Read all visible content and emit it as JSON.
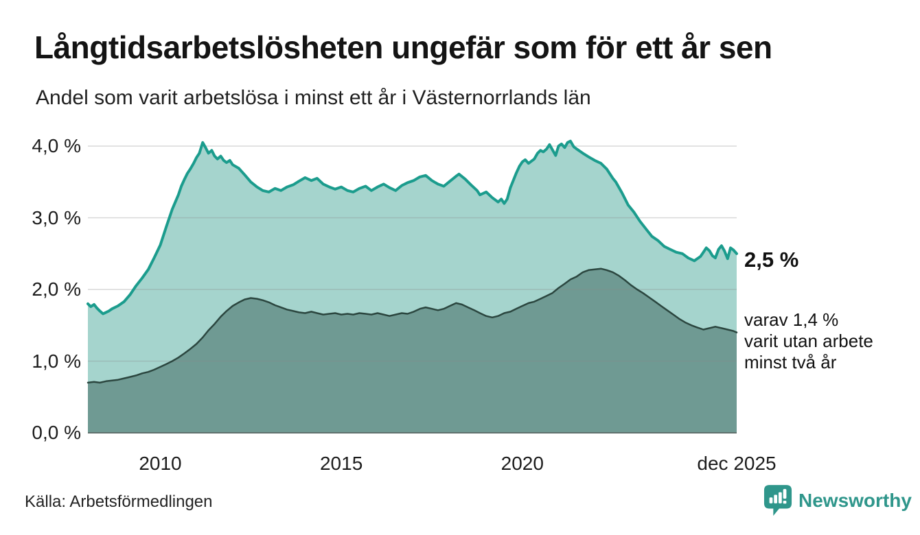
{
  "header": {
    "title": "Långtidsarbetslösheten ungefär som för ett år sen",
    "subtitle": "Andel som varit arbetslösa i minst ett år i Västernorrlands län"
  },
  "annotations": {
    "latest_total": "2,5 %",
    "secondary_lines": [
      "varav 1,4 %",
      "varit utan arbete",
      "minst två år"
    ]
  },
  "footer": {
    "source": "Källa: Arbetsförmedlingen",
    "logo_text": "Newsworthy"
  },
  "colors": {
    "line_total": "#1b9c8d",
    "fill_total": "#a5d4cd",
    "line_two_years": "#2b463f",
    "fill_two_years": "#6f9a93",
    "gridline": "#888888",
    "baseline": "#5f716d",
    "logo_teal": "#2f968b",
    "text_dark": "#141414"
  },
  "chart_data": {
    "type": "area",
    "title": "Långtidsarbetslösheten ungefär som för ett år sen",
    "subtitle": "Andel som varit arbetslösa i minst ett år i Västernorrlands län",
    "grid": true,
    "legend_position": "none",
    "x_axis": {
      "range": [
        2008.0,
        2025.92
      ],
      "ticks": [
        {
          "x": 2010,
          "label": "2010"
        },
        {
          "x": 2015,
          "label": "2015"
        },
        {
          "x": 2020,
          "label": "2020"
        },
        {
          "x": 2025.92,
          "label": "dec 2025"
        }
      ]
    },
    "y_axis": {
      "unit": "%",
      "range": [
        0,
        4.0
      ],
      "ticks": [
        {
          "v": 0,
          "label": "0,0 %"
        },
        {
          "v": 1,
          "label": "1,0 %"
        },
        {
          "v": 2,
          "label": "2,0 %"
        },
        {
          "v": 3,
          "label": "3,0 %"
        },
        {
          "v": 4,
          "label": "4,0 %"
        }
      ]
    },
    "series": [
      {
        "name": "Andel arbetslösa minst ett år",
        "latest_value": 2.5,
        "color": "#1b9c8d",
        "fill": "#a5d4cd",
        "stroke_width": 4,
        "points": [
          [
            2008.0,
            1.8
          ],
          [
            2008.08,
            1.76
          ],
          [
            2008.17,
            1.79
          ],
          [
            2008.25,
            1.74
          ],
          [
            2008.33,
            1.7
          ],
          [
            2008.42,
            1.66
          ],
          [
            2008.5,
            1.68
          ],
          [
            2008.58,
            1.7
          ],
          [
            2008.67,
            1.73
          ],
          [
            2008.83,
            1.77
          ],
          [
            2009.0,
            1.83
          ],
          [
            2009.17,
            1.93
          ],
          [
            2009.33,
            2.05
          ],
          [
            2009.5,
            2.16
          ],
          [
            2009.67,
            2.28
          ],
          [
            2009.83,
            2.44
          ],
          [
            2010.0,
            2.62
          ],
          [
            2010.17,
            2.88
          ],
          [
            2010.33,
            3.12
          ],
          [
            2010.5,
            3.32
          ],
          [
            2010.58,
            3.44
          ],
          [
            2010.67,
            3.54
          ],
          [
            2010.75,
            3.62
          ],
          [
            2010.83,
            3.68
          ],
          [
            2010.92,
            3.76
          ],
          [
            2011.0,
            3.84
          ],
          [
            2011.08,
            3.9
          ],
          [
            2011.17,
            4.05
          ],
          [
            2011.25,
            3.98
          ],
          [
            2011.33,
            3.9
          ],
          [
            2011.42,
            3.94
          ],
          [
            2011.5,
            3.86
          ],
          [
            2011.58,
            3.82
          ],
          [
            2011.67,
            3.86
          ],
          [
            2011.75,
            3.8
          ],
          [
            2011.83,
            3.77
          ],
          [
            2011.92,
            3.8
          ],
          [
            2012.0,
            3.74
          ],
          [
            2012.17,
            3.69
          ],
          [
            2012.33,
            3.6
          ],
          [
            2012.5,
            3.5
          ],
          [
            2012.67,
            3.43
          ],
          [
            2012.83,
            3.38
          ],
          [
            2013.0,
            3.36
          ],
          [
            2013.17,
            3.41
          ],
          [
            2013.33,
            3.38
          ],
          [
            2013.5,
            3.43
          ],
          [
            2013.67,
            3.46
          ],
          [
            2013.83,
            3.51
          ],
          [
            2014.0,
            3.56
          ],
          [
            2014.17,
            3.52
          ],
          [
            2014.33,
            3.55
          ],
          [
            2014.5,
            3.47
          ],
          [
            2014.67,
            3.43
          ],
          [
            2014.83,
            3.4
          ],
          [
            2015.0,
            3.43
          ],
          [
            2015.17,
            3.38
          ],
          [
            2015.33,
            3.36
          ],
          [
            2015.5,
            3.41
          ],
          [
            2015.67,
            3.44
          ],
          [
            2015.83,
            3.38
          ],
          [
            2016.0,
            3.43
          ],
          [
            2016.17,
            3.47
          ],
          [
            2016.33,
            3.42
          ],
          [
            2016.5,
            3.38
          ],
          [
            2016.67,
            3.45
          ],
          [
            2016.83,
            3.49
          ],
          [
            2017.0,
            3.52
          ],
          [
            2017.17,
            3.57
          ],
          [
            2017.33,
            3.59
          ],
          [
            2017.5,
            3.52
          ],
          [
            2017.67,
            3.47
          ],
          [
            2017.83,
            3.44
          ],
          [
            2018.0,
            3.51
          ],
          [
            2018.17,
            3.58
          ],
          [
            2018.25,
            3.61
          ],
          [
            2018.42,
            3.54
          ],
          [
            2018.58,
            3.46
          ],
          [
            2018.75,
            3.38
          ],
          [
            2018.83,
            3.32
          ],
          [
            2019.0,
            3.36
          ],
          [
            2019.17,
            3.28
          ],
          [
            2019.33,
            3.22
          ],
          [
            2019.42,
            3.26
          ],
          [
            2019.5,
            3.2
          ],
          [
            2019.58,
            3.26
          ],
          [
            2019.67,
            3.42
          ],
          [
            2019.83,
            3.62
          ],
          [
            2019.92,
            3.72
          ],
          [
            2020.0,
            3.78
          ],
          [
            2020.08,
            3.81
          ],
          [
            2020.17,
            3.76
          ],
          [
            2020.33,
            3.82
          ],
          [
            2020.42,
            3.9
          ],
          [
            2020.5,
            3.94
          ],
          [
            2020.58,
            3.92
          ],
          [
            2020.67,
            3.96
          ],
          [
            2020.75,
            4.02
          ],
          [
            2020.92,
            3.87
          ],
          [
            2021.0,
            4.0
          ],
          [
            2021.08,
            4.03
          ],
          [
            2021.17,
            3.98
          ],
          [
            2021.25,
            4.05
          ],
          [
            2021.33,
            4.07
          ],
          [
            2021.42,
            3.99
          ],
          [
            2021.5,
            3.96
          ],
          [
            2021.67,
            3.9
          ],
          [
            2021.83,
            3.85
          ],
          [
            2022.0,
            3.8
          ],
          [
            2022.17,
            3.76
          ],
          [
            2022.33,
            3.68
          ],
          [
            2022.5,
            3.55
          ],
          [
            2022.58,
            3.5
          ],
          [
            2022.75,
            3.35
          ],
          [
            2022.92,
            3.18
          ],
          [
            2023.08,
            3.08
          ],
          [
            2023.25,
            2.95
          ],
          [
            2023.42,
            2.84
          ],
          [
            2023.58,
            2.74
          ],
          [
            2023.75,
            2.68
          ],
          [
            2023.92,
            2.6
          ],
          [
            2024.08,
            2.56
          ],
          [
            2024.25,
            2.52
          ],
          [
            2024.42,
            2.5
          ],
          [
            2024.58,
            2.44
          ],
          [
            2024.75,
            2.4
          ],
          [
            2024.92,
            2.46
          ],
          [
            2025.0,
            2.52
          ],
          [
            2025.08,
            2.58
          ],
          [
            2025.17,
            2.54
          ],
          [
            2025.25,
            2.47
          ],
          [
            2025.33,
            2.44
          ],
          [
            2025.42,
            2.56
          ],
          [
            2025.5,
            2.61
          ],
          [
            2025.58,
            2.54
          ],
          [
            2025.67,
            2.43
          ],
          [
            2025.75,
            2.58
          ],
          [
            2025.83,
            2.55
          ],
          [
            2025.92,
            2.5
          ]
        ]
      },
      {
        "name": "Andel arbetslösa minst två år",
        "latest_value": 1.4,
        "color": "#2b463f",
        "fill": "#6f9a93",
        "stroke_width": 2.5,
        "points": [
          [
            2008.0,
            0.7
          ],
          [
            2008.17,
            0.71
          ],
          [
            2008.33,
            0.7
          ],
          [
            2008.5,
            0.72
          ],
          [
            2008.67,
            0.73
          ],
          [
            2008.83,
            0.74
          ],
          [
            2009.0,
            0.76
          ],
          [
            2009.17,
            0.78
          ],
          [
            2009.33,
            0.8
          ],
          [
            2009.5,
            0.83
          ],
          [
            2009.67,
            0.85
          ],
          [
            2009.83,
            0.88
          ],
          [
            2010.0,
            0.92
          ],
          [
            2010.17,
            0.96
          ],
          [
            2010.33,
            1.0
          ],
          [
            2010.5,
            1.05
          ],
          [
            2010.67,
            1.11
          ],
          [
            2010.83,
            1.17
          ],
          [
            2011.0,
            1.24
          ],
          [
            2011.17,
            1.33
          ],
          [
            2011.33,
            1.43
          ],
          [
            2011.5,
            1.52
          ],
          [
            2011.67,
            1.62
          ],
          [
            2011.83,
            1.7
          ],
          [
            2012.0,
            1.77
          ],
          [
            2012.17,
            1.82
          ],
          [
            2012.33,
            1.86
          ],
          [
            2012.5,
            1.88
          ],
          [
            2012.67,
            1.87
          ],
          [
            2012.83,
            1.85
          ],
          [
            2013.0,
            1.82
          ],
          [
            2013.17,
            1.78
          ],
          [
            2013.33,
            1.75
          ],
          [
            2013.5,
            1.72
          ],
          [
            2013.67,
            1.7
          ],
          [
            2013.83,
            1.68
          ],
          [
            2014.0,
            1.67
          ],
          [
            2014.17,
            1.69
          ],
          [
            2014.33,
            1.67
          ],
          [
            2014.5,
            1.65
          ],
          [
            2014.67,
            1.66
          ],
          [
            2014.83,
            1.67
          ],
          [
            2015.0,
            1.65
          ],
          [
            2015.17,
            1.66
          ],
          [
            2015.33,
            1.65
          ],
          [
            2015.5,
            1.67
          ],
          [
            2015.67,
            1.66
          ],
          [
            2015.83,
            1.65
          ],
          [
            2016.0,
            1.67
          ],
          [
            2016.17,
            1.65
          ],
          [
            2016.33,
            1.63
          ],
          [
            2016.5,
            1.65
          ],
          [
            2016.67,
            1.67
          ],
          [
            2016.83,
            1.66
          ],
          [
            2017.0,
            1.69
          ],
          [
            2017.17,
            1.73
          ],
          [
            2017.33,
            1.75
          ],
          [
            2017.5,
            1.73
          ],
          [
            2017.67,
            1.71
          ],
          [
            2017.83,
            1.73
          ],
          [
            2018.0,
            1.77
          ],
          [
            2018.17,
            1.81
          ],
          [
            2018.33,
            1.79
          ],
          [
            2018.5,
            1.75
          ],
          [
            2018.67,
            1.71
          ],
          [
            2018.83,
            1.67
          ],
          [
            2019.0,
            1.63
          ],
          [
            2019.17,
            1.61
          ],
          [
            2019.33,
            1.63
          ],
          [
            2019.5,
            1.67
          ],
          [
            2019.67,
            1.69
          ],
          [
            2019.83,
            1.73
          ],
          [
            2020.0,
            1.77
          ],
          [
            2020.17,
            1.81
          ],
          [
            2020.33,
            1.83
          ],
          [
            2020.5,
            1.87
          ],
          [
            2020.67,
            1.91
          ],
          [
            2020.83,
            1.95
          ],
          [
            2021.0,
            2.02
          ],
          [
            2021.17,
            2.08
          ],
          [
            2021.33,
            2.14
          ],
          [
            2021.5,
            2.18
          ],
          [
            2021.67,
            2.24
          ],
          [
            2021.83,
            2.27
          ],
          [
            2022.0,
            2.28
          ],
          [
            2022.17,
            2.29
          ],
          [
            2022.33,
            2.27
          ],
          [
            2022.5,
            2.24
          ],
          [
            2022.67,
            2.19
          ],
          [
            2022.83,
            2.13
          ],
          [
            2023.0,
            2.06
          ],
          [
            2023.17,
            2.0
          ],
          [
            2023.33,
            1.95
          ],
          [
            2023.5,
            1.89
          ],
          [
            2023.67,
            1.83
          ],
          [
            2023.83,
            1.77
          ],
          [
            2024.0,
            1.71
          ],
          [
            2024.17,
            1.65
          ],
          [
            2024.33,
            1.59
          ],
          [
            2024.5,
            1.54
          ],
          [
            2024.67,
            1.5
          ],
          [
            2024.83,
            1.47
          ],
          [
            2025.0,
            1.44
          ],
          [
            2025.17,
            1.46
          ],
          [
            2025.33,
            1.48
          ],
          [
            2025.5,
            1.46
          ],
          [
            2025.67,
            1.44
          ],
          [
            2025.83,
            1.42
          ],
          [
            2025.92,
            1.4
          ]
        ]
      }
    ]
  }
}
